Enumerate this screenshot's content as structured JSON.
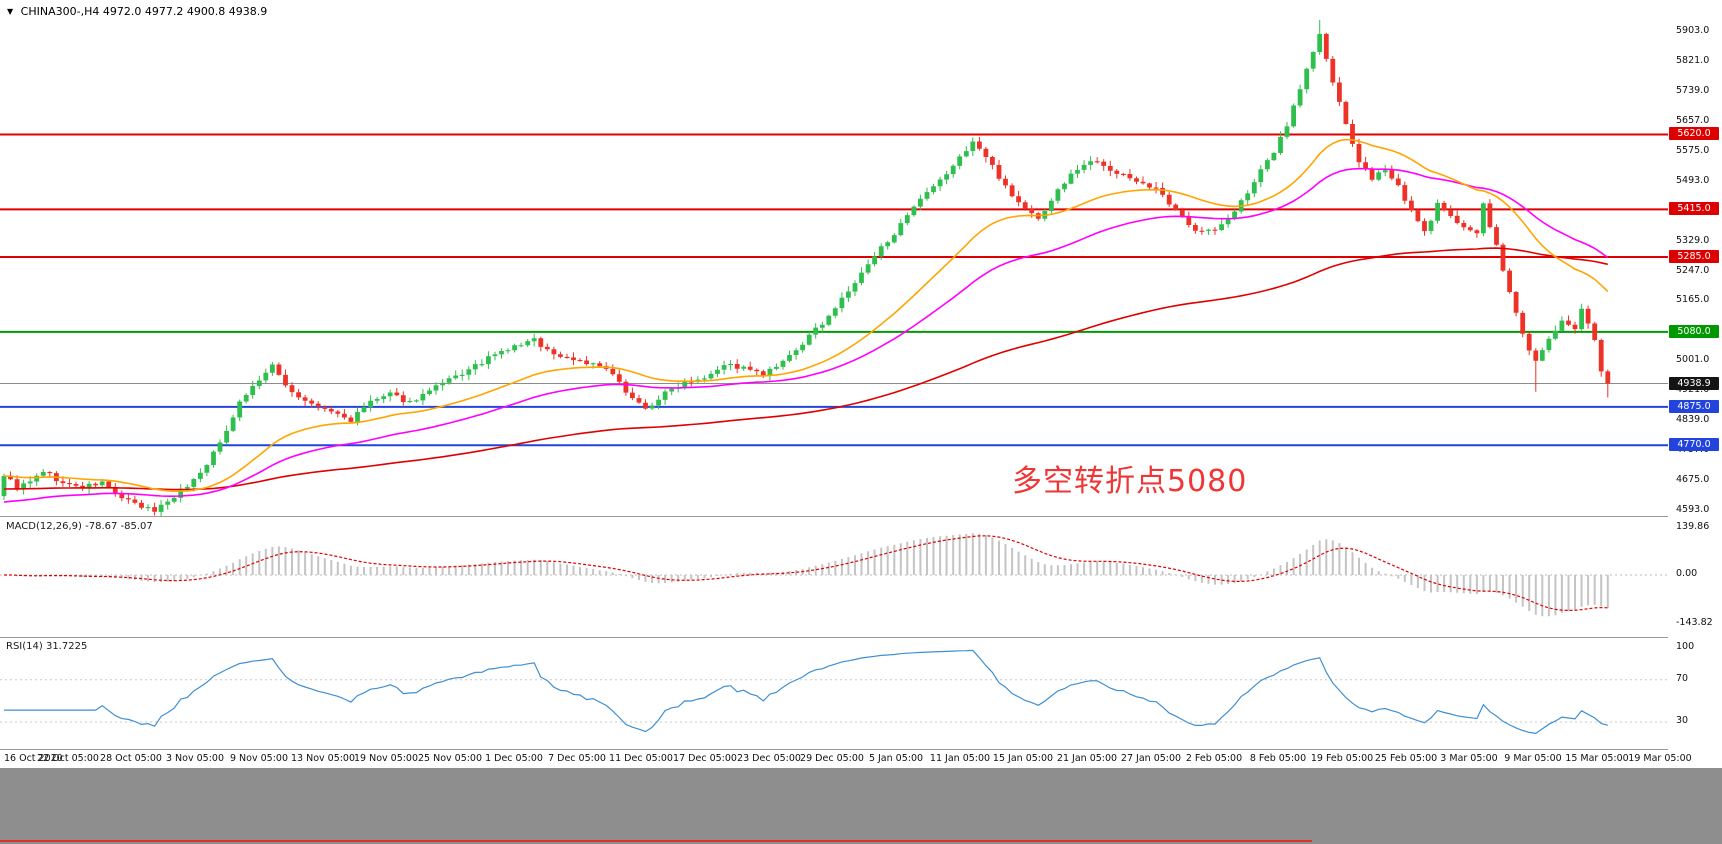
{
  "header": {
    "dropdown_icon": "▼",
    "symbol_timeframe": "CHINA300-,H4",
    "ohlc_text": "4972.0 4977.2 4900.8 4938.9"
  },
  "chart_data": {
    "type": "candlestick",
    "symbol": "CHINA300-",
    "timeframe": "H4",
    "last_bar": {
      "open": 4972.0,
      "high": 4977.2,
      "low": 4900.8,
      "close": 4938.9
    },
    "bar_count": 246,
    "price_axis": {
      "top": 5903.0,
      "bottom": 4593.0,
      "labels": [
        "5903.0",
        "5821.0",
        "5739.0",
        "5657.0",
        "5575.0",
        "5493.0",
        "5411.0",
        "5329.0",
        "5247.0",
        "5165.0",
        "5083.0",
        "5001.0",
        "4921.0",
        "4839.0",
        "4757.0",
        "4675.0",
        "4593.0"
      ]
    },
    "x_ticks": [
      "16 Oct 2020",
      "22 Oct 05:00",
      "28 Oct 05:00",
      "3 Nov 05:00",
      "9 Nov 05:00",
      "13 Nov 05:00",
      "19 Nov 05:00",
      "25 Nov 05:00",
      "1 Dec 05:00",
      "7 Dec 05:00",
      "11 Dec 05:00",
      "17 Dec 05:00",
      "23 Dec 05:00",
      "29 Dec 05:00",
      "5 Jan 05:00",
      "11 Jan 05:00",
      "15 Jan 05:00",
      "21 Jan 05:00",
      "27 Jan 05:00",
      "2 Feb 05:00",
      "8 Feb 05:00",
      "19 Feb 05:00",
      "25 Feb 05:00",
      "3 Mar 05:00",
      "9 Mar 05:00",
      "15 Mar 05:00",
      "19 Mar 05:00"
    ],
    "close_keypoints": [
      [
        0,
        4690
      ],
      [
        2,
        4655
      ],
      [
        4,
        4668
      ],
      [
        6,
        4700
      ],
      [
        9,
        4665
      ],
      [
        12,
        4655
      ],
      [
        15,
        4668
      ],
      [
        18,
        4625
      ],
      [
        21,
        4600
      ],
      [
        23,
        4592
      ],
      [
        25,
        4618
      ],
      [
        28,
        4660
      ],
      [
        30,
        4695
      ],
      [
        33,
        4775
      ],
      [
        36,
        4890
      ],
      [
        39,
        4950
      ],
      [
        41,
        4985
      ],
      [
        44,
        4915
      ],
      [
        47,
        4880
      ],
      [
        50,
        4862
      ],
      [
        53,
        4838
      ],
      [
        56,
        4890
      ],
      [
        59,
        4908
      ],
      [
        62,
        4888
      ],
      [
        65,
        4918
      ],
      [
        68,
        4948
      ],
      [
        71,
        4975
      ],
      [
        74,
        5008
      ],
      [
        78,
        5040
      ],
      [
        81,
        5058
      ],
      [
        84,
        5018
      ],
      [
        88,
        5002
      ],
      [
        92,
        4978
      ],
      [
        95,
        4920
      ],
      [
        98,
        4868
      ],
      [
        101,
        4912
      ],
      [
        104,
        4945
      ],
      [
        107,
        4958
      ],
      [
        110,
        4992
      ],
      [
        113,
        4980
      ],
      [
        116,
        4962
      ],
      [
        119,
        4995
      ],
      [
        122,
        5048
      ],
      [
        125,
        5105
      ],
      [
        128,
        5168
      ],
      [
        131,
        5238
      ],
      [
        134,
        5310
      ],
      [
        137,
        5372
      ],
      [
        140,
        5440
      ],
      [
        143,
        5492
      ],
      [
        146,
        5556
      ],
      [
        148,
        5602
      ],
      [
        150,
        5558
      ],
      [
        152,
        5505
      ],
      [
        155,
        5432
      ],
      [
        158,
        5388
      ],
      [
        161,
        5468
      ],
      [
        164,
        5528
      ],
      [
        167,
        5552
      ],
      [
        170,
        5512
      ],
      [
        173,
        5495
      ],
      [
        176,
        5470
      ],
      [
        179,
        5408
      ],
      [
        182,
        5362
      ],
      [
        185,
        5356
      ],
      [
        188,
        5408
      ],
      [
        191,
        5492
      ],
      [
        194,
        5572
      ],
      [
        196,
        5648
      ],
      [
        198,
        5748
      ],
      [
        200,
        5848
      ],
      [
        201,
        5892
      ],
      [
        203,
        5762
      ],
      [
        205,
        5645
      ],
      [
        207,
        5548
      ],
      [
        209,
        5492
      ],
      [
        211,
        5528
      ],
      [
        213,
        5480
      ],
      [
        215,
        5408
      ],
      [
        217,
        5352
      ],
      [
        219,
        5428
      ],
      [
        221,
        5392
      ],
      [
        223,
        5372
      ],
      [
        225,
        5348
      ],
      [
        226,
        5428
      ],
      [
        228,
        5312
      ],
      [
        230,
        5188
      ],
      [
        232,
        5072
      ],
      [
        234,
        4998
      ],
      [
        236,
        5062
      ],
      [
        238,
        5108
      ],
      [
        240,
        5085
      ],
      [
        241,
        5138
      ],
      [
        243,
        5062
      ],
      [
        244,
        4972
      ],
      [
        245,
        4938.9
      ]
    ],
    "hlines": [
      {
        "value": 5620.0,
        "label": "5620.0",
        "color": "#dd0000"
      },
      {
        "value": 5415.0,
        "label": "5415.0",
        "color": "#dd0000"
      },
      {
        "value": 5285.0,
        "label": "5285.0",
        "color": "#dd0000"
      },
      {
        "value": 5080.0,
        "label": "5080.0",
        "color": "#009900"
      },
      {
        "value": 4875.0,
        "label": "4875.0",
        "color": "#2244dd"
      },
      {
        "value": 4770.0,
        "label": "4770.0",
        "color": "#2244dd"
      }
    ],
    "current_price_line": {
      "value": 4938.9,
      "label": "4938.9",
      "line_color": "#8c8c8c",
      "tag_color": "#141414"
    },
    "moving_averages": [
      {
        "name": "fast",
        "period": 30,
        "color": "#ffa500",
        "seed": null
      },
      {
        "name": "medium",
        "period": 55,
        "color": "#ff00ff",
        "seed": 4612
      },
      {
        "name": "slow",
        "period": 160,
        "color": "#e00000",
        "seed": 4650
      }
    ],
    "candle_colors": {
      "bull": "#2fbf4f",
      "bear": "#ed3228"
    },
    "annotation": {
      "text": "多空转折点5080",
      "color": "#f03535"
    },
    "macd": {
      "label": "MACD(12,26,9) -78.67 -85.07",
      "fast": 12,
      "slow": 26,
      "signal": 9,
      "values_text": [
        "-78.67",
        "-85.07"
      ],
      "scale_labels": [
        "139.86",
        "0.00",
        "-143.82"
      ],
      "histogram_color": "#c4c4c4",
      "signal_color": "#e00000"
    },
    "rsi": {
      "label": "RSI(14) 31.7225",
      "period": 14,
      "value": 31.7225,
      "scale_labels": [
        "100",
        "70",
        "30"
      ],
      "levels": [
        70,
        30
      ],
      "line_color": "#3f8fd2"
    }
  }
}
